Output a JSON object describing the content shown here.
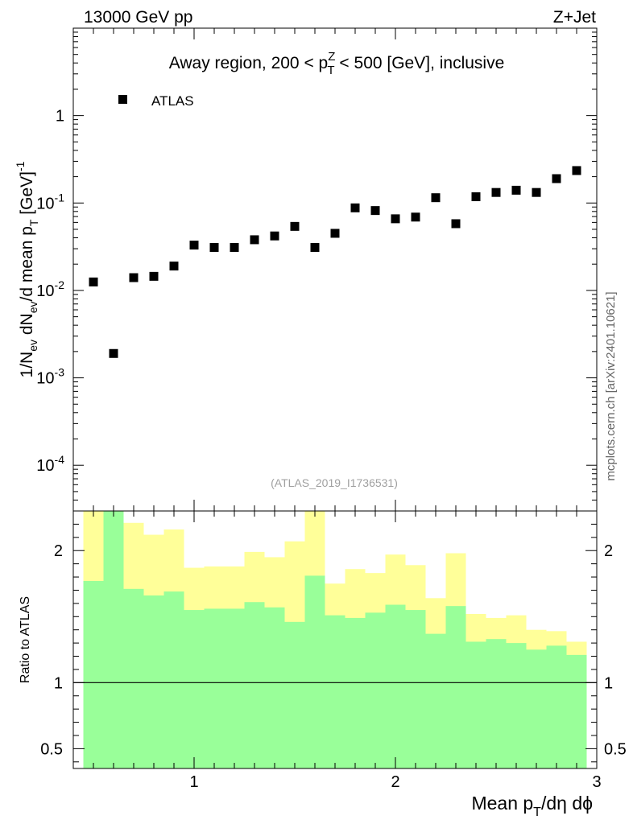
{
  "header": {
    "left": "13000 GeV pp",
    "right": "Z+Jet"
  },
  "side_label": "mcplots.cern.ch [arXiv:2401.10621]",
  "chart_data": [
    {
      "type": "scatter",
      "panel": "main",
      "title": "Away region, 200 < p_T^Z < 500 [GeV], inclusive",
      "title_parts": [
        "Away region, 200 < p",
        "Z",
        "T",
        " < 500 [GeV], inclusive"
      ],
      "ylabel": "1/N_ev dN_ev/d mean p_T [GeV]^-1",
      "ylabel_parts": [
        "1/N",
        "ev",
        " dN",
        "ev",
        "/d mean p",
        "T",
        " [GeV]",
        "-1"
      ],
      "yscale": "log",
      "ylim": [
        3e-05,
        10
      ],
      "xlim": [
        0.4,
        3.0
      ],
      "yticks": [
        {
          "value": 1,
          "label": "1",
          "base": "",
          "exp": ""
        },
        {
          "value": 0.1,
          "label": "",
          "base": "10",
          "exp": "-1"
        },
        {
          "value": 0.01,
          "label": "",
          "base": "10",
          "exp": "-2"
        },
        {
          "value": 0.001,
          "label": "",
          "base": "10",
          "exp": "-3"
        },
        {
          "value": 0.0001,
          "label": "",
          "base": "10",
          "exp": "-4"
        }
      ],
      "legend": {
        "entries": [
          "ATLAS"
        ],
        "position": "top-left"
      },
      "watermark": "(ATLAS_2019_I1736531)",
      "series": [
        {
          "name": "ATLAS",
          "marker": "square",
          "x": [
            0.5,
            0.6,
            0.7,
            0.8,
            0.9,
            1.0,
            1.1,
            1.2,
            1.3,
            1.4,
            1.5,
            1.6,
            1.7,
            1.8,
            1.9,
            2.0,
            2.1,
            2.2,
            2.3,
            2.4,
            2.5,
            2.6,
            2.7,
            2.8,
            2.9
          ],
          "y": [
            0.0125,
            0.0019,
            0.014,
            0.0145,
            0.019,
            0.033,
            0.031,
            0.031,
            0.038,
            0.042,
            0.054,
            0.031,
            0.045,
            0.088,
            0.082,
            0.066,
            0.069,
            0.115,
            0.058,
            0.118,
            0.132,
            0.14,
            0.132,
            0.19,
            0.235
          ]
        }
      ]
    },
    {
      "type": "area",
      "panel": "ratio",
      "ylabel": "Ratio to ATLAS",
      "xlabel": "Mean p_T/dη dϕ",
      "xlabel_parts": [
        "Mean p",
        "T",
        "/dη dϕ"
      ],
      "xlim": [
        0.4,
        3.0
      ],
      "ylim": [
        0.35,
        2.3
      ],
      "xticks": [
        {
          "value": 1,
          "label": "1"
        },
        {
          "value": 2,
          "label": "2"
        },
        {
          "value": 3,
          "label": "3"
        }
      ],
      "yticks": [
        {
          "value": 2,
          "label": "2"
        },
        {
          "value": 1,
          "label": "1"
        },
        {
          "value": 0.5,
          "label": "0.5"
        }
      ],
      "reference_line": 1,
      "bins": [
        0.45,
        0.55,
        0.65,
        0.75,
        0.85,
        0.95,
        1.05,
        1.15,
        1.25,
        1.35,
        1.45,
        1.55,
        1.65,
        1.75,
        1.85,
        1.95,
        2.05,
        2.15,
        2.25,
        2.35,
        2.45,
        2.55,
        2.65,
        2.75,
        2.85,
        2.95
      ],
      "bands": [
        {
          "name": "total uncertainty",
          "color": "#ffff99",
          "upper": [
            2.3,
            2.3,
            2.21,
            2.12,
            2.16,
            1.87,
            1.88,
            1.88,
            1.99,
            1.95,
            2.07,
            2.3,
            1.75,
            1.86,
            1.83,
            1.97,
            1.89,
            1.64,
            1.98,
            1.52,
            1.49,
            1.51,
            1.4,
            1.39,
            1.31
          ],
          "lower": [
            0.35,
            0.35,
            0.35,
            0.35,
            0.35,
            0.53,
            0.52,
            0.52,
            0.44,
            0.38,
            0.65,
            0.35,
            0.63,
            0.58,
            0.52,
            0.5,
            0.57,
            0.74,
            0.35,
            0.79,
            0.77,
            0.81,
            0.38,
            0.81,
            0.86
          ]
        },
        {
          "name": "statistical uncertainty",
          "color": "#99ff99",
          "upper": [
            1.77,
            2.3,
            1.71,
            1.66,
            1.69,
            1.55,
            1.56,
            1.56,
            1.61,
            1.57,
            1.46,
            1.81,
            1.51,
            1.49,
            1.53,
            1.59,
            1.55,
            1.37,
            1.58,
            1.31,
            1.33,
            1.3,
            1.25,
            1.28,
            1.21
          ],
          "lower": [
            0.35,
            0.35,
            0.35,
            0.35,
            0.35,
            0.35,
            0.35,
            0.35,
            0.35,
            0.35,
            0.35,
            0.35,
            0.35,
            0.35,
            0.35,
            0.35,
            0.35,
            0.35,
            0.35,
            0.35,
            0.35,
            0.35,
            0.35,
            0.35,
            0.35
          ]
        }
      ]
    }
  ]
}
